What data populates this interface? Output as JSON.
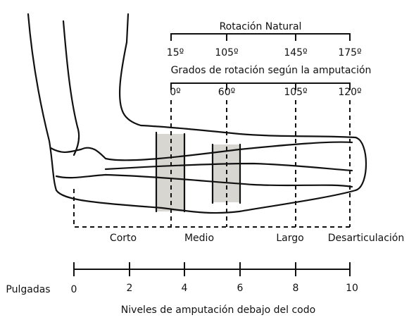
{
  "natural": {
    "title": "Rotación Natural",
    "labels": [
      "15º",
      "105º",
      "145º",
      "175º"
    ]
  },
  "amputation": {
    "title": "Grados de rotación según la amputación",
    "labels": [
      "0º",
      "60º",
      "105º",
      "120º"
    ]
  },
  "levels": [
    "Corto",
    "Medio",
    "Largo",
    "Desarticulación"
  ],
  "ruler": {
    "label": "Pulgadas",
    "ticks": [
      0,
      2,
      4,
      6,
      8,
      10
    ]
  },
  "caption": "Niveles de amputación debajo del codo"
}
